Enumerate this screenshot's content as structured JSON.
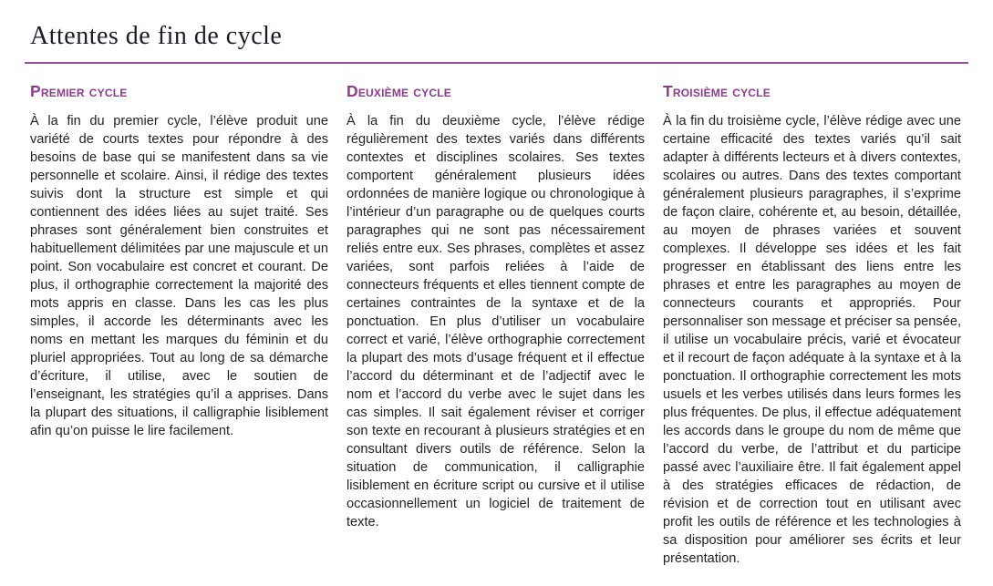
{
  "page": {
    "title": "Attentes de fin de cycle"
  },
  "colors": {
    "heading_purple": "#8e3b8e",
    "rule_purple": "#9c4f9b",
    "title_text": "#1b1a29",
    "body_text": "#231f20",
    "background": "#ffffff"
  },
  "columns": [
    {
      "heading": "Premier cycle",
      "body": "À la fin du premier cycle, l’élève produit une variété de courts textes pour répondre à des besoins de base qui se manifestent dans sa vie personnelle et scolaire. Ainsi, il rédige des textes suivis dont la structure est simple et qui contiennent des idées liées au sujet traité. Ses phrases sont généralement bien construites et habituellement délimitées par une majuscule et un point. Son vocabulaire est concret et courant. De plus, il orthographie correctement la majorité des mots appris en classe. Dans les cas les plus simples, il accorde les déterminants avec les noms en mettant les marques du féminin et du pluriel appropriées. Tout au long de sa démarche d’écriture, il utilise, avec le soutien de l’enseignant, les stratégies qu’il a apprises. Dans la plupart des situations, il calligraphie lisiblement afin qu’on puisse le lire facilement."
    },
    {
      "heading": "Deuxième cycle",
      "body": "À la fin du deuxième cycle, l’élève rédige régulièrement des textes variés dans différents contextes et disciplines scolaires. Ses textes comportent généralement plusieurs idées ordonnées de manière logique ou chronologique à l’intérieur d’un paragraphe ou de quelques courts paragraphes qui ne sont pas nécessairement reliés entre eux. Ses phrases, complètes et assez variées, sont parfois reliées à l’aide de connecteurs fréquents et elles tiennent compte de certaines contraintes de la syntaxe et de la ponctuation. En plus d’utiliser un vocabulaire correct et varié, l’élève orthographie correctement la plupart des mots d’usage fréquent et il effectue l’accord du déterminant et de l’adjectif avec le nom et l’accord du verbe avec le sujet dans les cas simples. Il sait également réviser et corriger son texte en recourant à plusieurs stratégies et en consultant divers outils de référence. Selon la situation de communication, il calligraphie lisiblement en écriture script ou cursive et il utilise occasionnellement un logiciel de traitement de texte."
    },
    {
      "heading": "Troisième cycle",
      "body": "À la fin du troisième cycle, l’élève rédige avec une certaine efficacité des textes variés qu’il sait adapter à différents lecteurs et à divers contextes, scolaires ou autres. Dans des textes comportant généralement plusieurs paragraphes, il s’exprime de façon claire, cohérente et, au besoin, détaillée, au moyen de phrases variées et souvent complexes. Il développe ses idées et les fait progresser en établissant des liens entre les phrases et entre les paragraphes au moyen de connecteurs courants et appropriés. Pour personnaliser son message et préciser sa pensée, il utilise un vocabulaire précis, varié et évocateur et il recourt de façon adéquate à la syntaxe et à la ponctuation. Il orthographie correctement les mots usuels et les verbes utilisés dans leurs formes les plus fréquentes. De plus, il effectue adéquatement les accords dans le groupe du nom de même que l’accord du verbe, de l’attribut et du participe passé avec l’auxiliaire être. Il fait également appel à des stratégies efficaces de rédaction, de révision et de correction tout en utilisant avec profit les outils de référence et les technologies à sa disposition pour améliorer ses écrits et leur présentation."
    }
  ]
}
